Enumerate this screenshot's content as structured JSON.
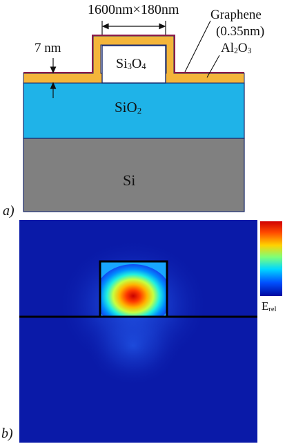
{
  "panel_a": {
    "tag": "a)",
    "dimension_label": "1600nm×180nm",
    "thickness_label": "7 nm",
    "graphene_label": "Graphene",
    "graphene_thickness_label": "(0.35nm)",
    "al2o3": {
      "main": "Al",
      "sub1": "2",
      "mid": "O",
      "sub2": "3"
    },
    "si3n4": {
      "main": "Si",
      "sub1": "3",
      "mid": "O",
      "sub2": "4"
    },
    "sio2": {
      "main": "SiO",
      "sub1": "2"
    },
    "si_label": "Si",
    "colors": {
      "graphene": "#8b1a4a",
      "al2o3": "#f4b53a",
      "sio2": "#1fb3e8",
      "si": "#808080",
      "waveguide": "#ffffff",
      "outline": "#1a2a6c"
    }
  },
  "panel_b": {
    "tag": "b)",
    "colorbar_label": {
      "main": "E",
      "sub": "rel"
    },
    "colormap": "jet",
    "colors": {
      "background": "#0a1aa8",
      "outline": "#000000"
    }
  }
}
